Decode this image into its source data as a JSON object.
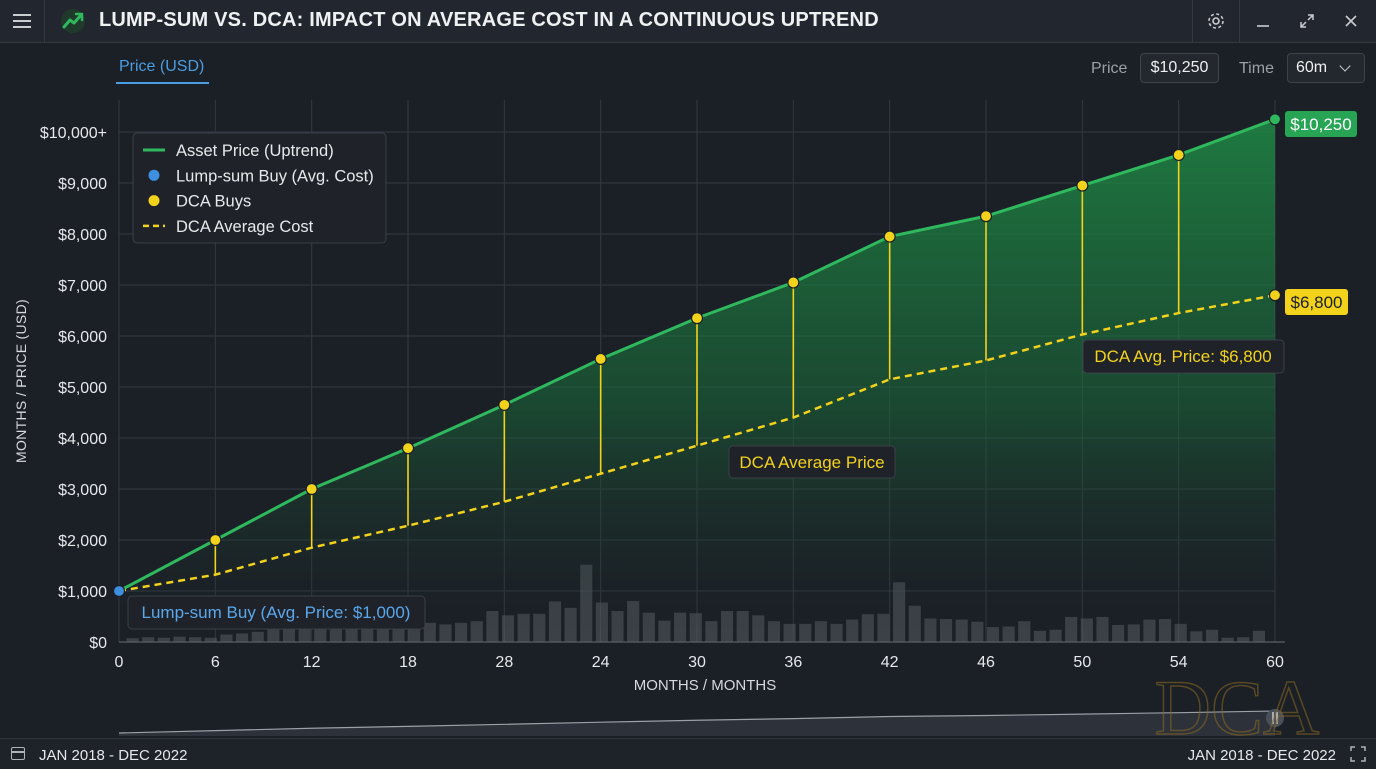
{
  "app": {
    "title": "LUMP-SUM VS. DCA: IMPACT ON AVERAGE COST IN A CONTINUOUS UPTREND",
    "brand_color": "#27b35a"
  },
  "toolbar": {
    "tab_label": "Price (USD)",
    "price_label": "Price",
    "price_value": "$10,250",
    "time_label": "Time",
    "time_value": "60m"
  },
  "icons": {
    "menu": "menu-icon",
    "logo": "trend-up-logo-icon",
    "settings": "gear-icon",
    "minimize": "minimize-icon",
    "maximize": "maximize-icon",
    "close": "close-icon",
    "calendar": "calendar-icon",
    "expand": "expand-icon"
  },
  "footer": {
    "range_left": "JAN 2018 - DEC 2022",
    "range_right": "JAN 2018 - DEC 2022"
  },
  "watermark": "DCA",
  "chart_data": {
    "type": "line",
    "xlabel": "MONTHS / MONTHS",
    "ylabel": "MONTHS / PRICE (USD)",
    "x_tick_labels": [
      "0",
      "6",
      "12",
      "18",
      "28",
      "24",
      "30",
      "36",
      "42",
      "46",
      "50",
      "54",
      "60"
    ],
    "y_tick_labels": [
      "$0",
      "$1,000",
      "$2,000",
      "$3,000",
      "$4,000",
      "$5,000",
      "$6,000",
      "$7,000",
      "$8,000",
      "$9,000",
      "$10,000+"
    ],
    "ylim": [
      0,
      10000
    ],
    "grid": true,
    "legend_position": "top-left",
    "legend": [
      {
        "label": "Asset Price (Uptrend)",
        "marker": "line",
        "color": "#2fb85e"
      },
      {
        "label": "Lump-sum Buy (Avg. Cost)",
        "marker": "dot",
        "color": "#3d8fe0"
      },
      {
        "label": "DCA Buys",
        "marker": "dot",
        "color": "#f2d21b"
      },
      {
        "label": "DCA Average Cost",
        "marker": "dashed",
        "color": "#f2d21b"
      }
    ],
    "series": [
      {
        "name": "Asset Price (Uptrend)",
        "color": "#2fb85e",
        "values": [
          1000,
          2000,
          3000,
          3800,
          4650,
          5550,
          6350,
          7050,
          7950,
          8350,
          8950,
          9550,
          10250
        ]
      },
      {
        "name": "DCA Average Cost",
        "color": "#f2d21b",
        "values": [
          1000,
          1320,
          1850,
          2280,
          2750,
          3300,
          3850,
          4400,
          5150,
          5520,
          6030,
          6450,
          6800
        ]
      }
    ],
    "lump_sum_point": {
      "x_index": 0,
      "value": 1000,
      "color": "#3d8fe0"
    },
    "volume": [
      0.07,
      0.09,
      0.08,
      0.1,
      0.09,
      0.08,
      0.14,
      0.16,
      0.19,
      0.26,
      0.27,
      0.27,
      0.27,
      0.26,
      0.27,
      0.26,
      0.27,
      0.27,
      0.3,
      0.36,
      0.33,
      0.36,
      0.39,
      0.58,
      0.5,
      0.53,
      0.53,
      0.76,
      0.64,
      1.45,
      0.74,
      0.58,
      0.77,
      0.55,
      0.4,
      0.55,
      0.54,
      0.39,
      0.58,
      0.58,
      0.5,
      0.39,
      0.34,
      0.34,
      0.39,
      0.34,
      0.42,
      0.52,
      0.53,
      1.12,
      0.68,
      0.44,
      0.43,
      0.42,
      0.38,
      0.28,
      0.29,
      0.39,
      0.21,
      0.23,
      0.47,
      0.44,
      0.47,
      0.32,
      0.33,
      0.42,
      0.43,
      0.34,
      0.2,
      0.23,
      0.08,
      0.09,
      0.21
    ],
    "annotations": {
      "price_end": "$10,250",
      "dca_end": "$6,800",
      "dca_avg_price_label": "DCA Avg. Price: $6,800",
      "dca_average_price": "DCA Average Price",
      "lump_sum_label": "Lump-sum Buy (Avg. Price: $1,000)"
    }
  }
}
